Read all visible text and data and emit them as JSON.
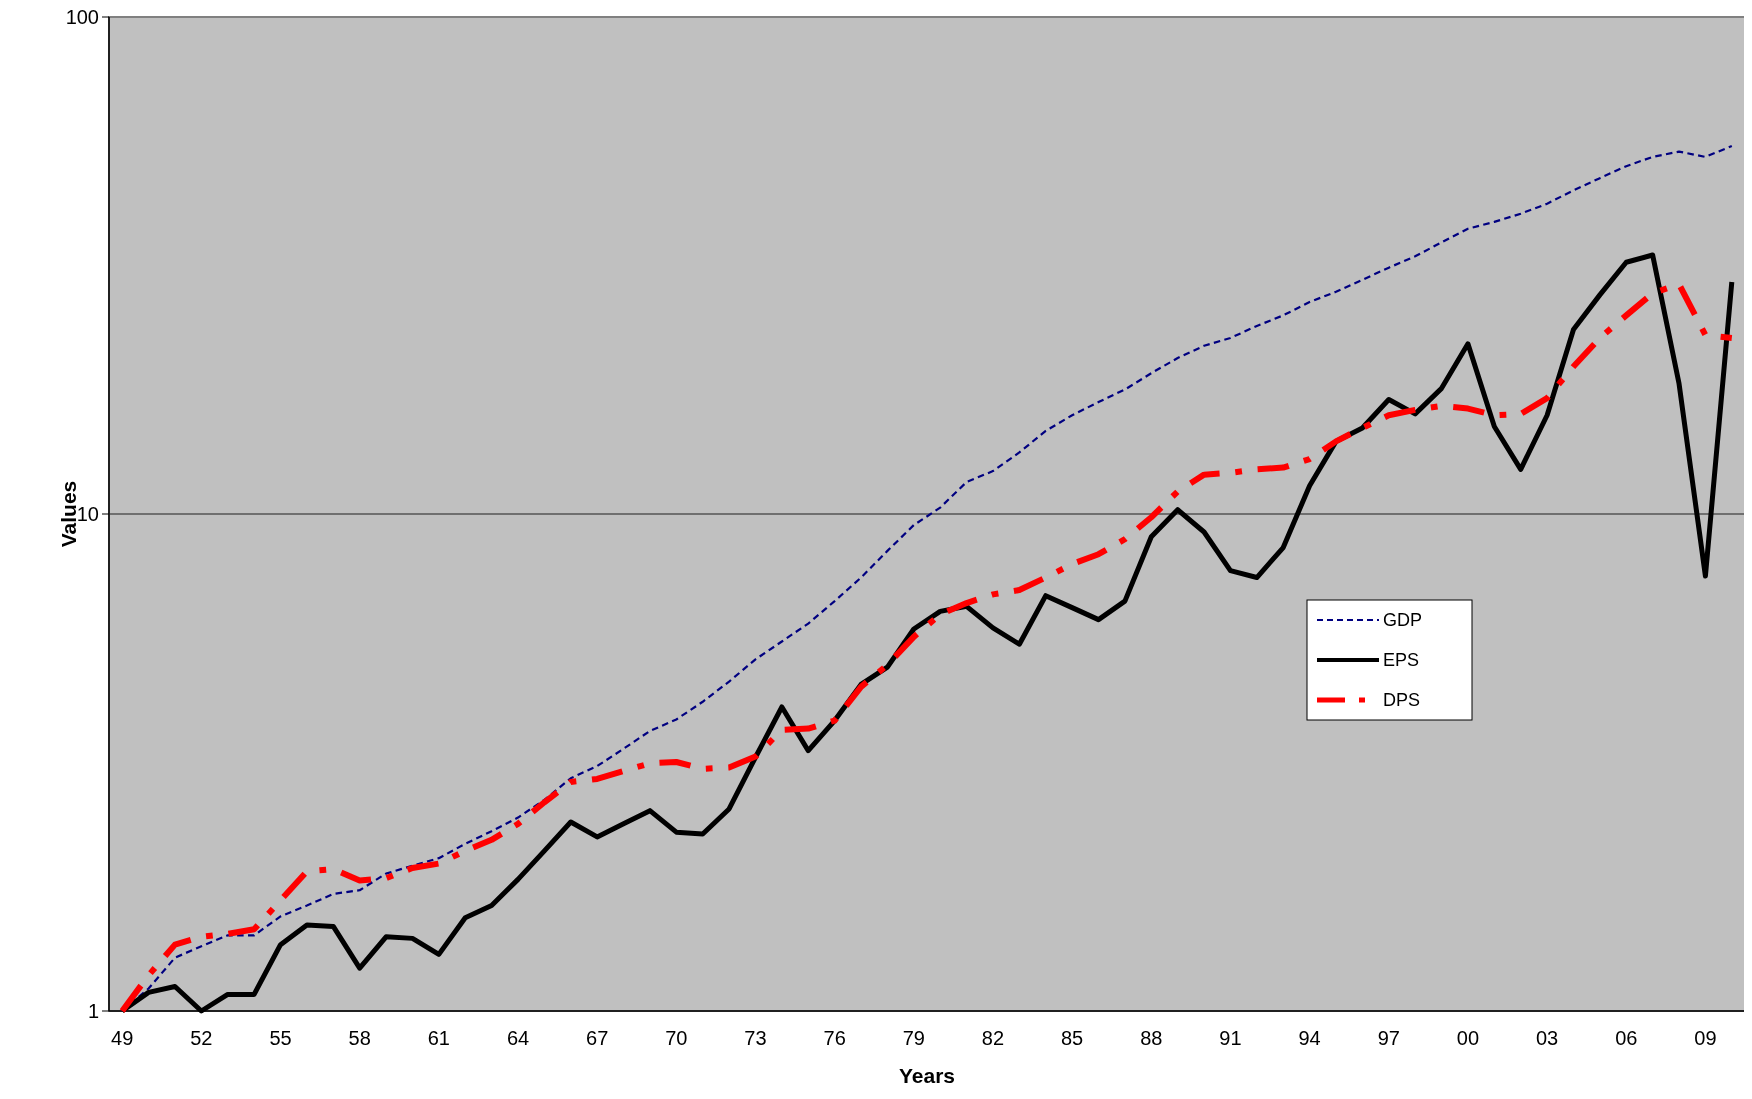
{
  "chart_data": {
    "type": "line",
    "xlabel": "Years",
    "ylabel": "Values",
    "categories": [
      "49",
      null,
      null,
      "52",
      null,
      null,
      "55",
      null,
      null,
      "58",
      null,
      null,
      "61",
      null,
      null,
      "64",
      null,
      null,
      "67",
      null,
      null,
      "70",
      null,
      null,
      "73",
      null,
      null,
      "76",
      null,
      null,
      "79",
      null,
      null,
      "82",
      null,
      null,
      "85",
      null,
      null,
      "88",
      null,
      null,
      "91",
      null,
      null,
      "94",
      null,
      null,
      "97",
      null,
      null,
      "00",
      null,
      null,
      "03",
      null,
      null,
      "06",
      null,
      null,
      "09",
      null
    ],
    "series": [
      {
        "name": "GDP",
        "color": "#000080",
        "line_style": "dashed",
        "values": [
          1,
          1.11,
          1.28,
          1.35,
          1.42,
          1.42,
          1.55,
          1.63,
          1.72,
          1.75,
          1.89,
          1.96,
          2.03,
          2.17,
          2.3,
          2.45,
          2.66,
          2.94,
          3.11,
          3.37,
          3.66,
          3.86,
          4.19,
          4.6,
          5.1,
          5.54,
          6.02,
          6.68,
          7.45,
          8.43,
          9.5,
          10.3,
          11.6,
          12.2,
          13.3,
          14.7,
          15.8,
          16.8,
          17.8,
          19.2,
          20.6,
          21.8,
          22.6,
          23.9,
          25.1,
          26.7,
          28,
          29.6,
          31.3,
          33,
          35.2,
          37.5,
          38.7,
          40.2,
          42.1,
          44.8,
          47.4,
          50.1,
          52.3,
          53.6,
          52.3,
          55
        ]
      },
      {
        "name": "EPS",
        "color": "#000000",
        "line_style": "solid",
        "values": [
          1,
          1.09,
          1.12,
          1,
          1.08,
          1.08,
          1.36,
          1.49,
          1.48,
          1.22,
          1.41,
          1.4,
          1.3,
          1.54,
          1.63,
          1.84,
          2.1,
          2.4,
          2.24,
          2.38,
          2.53,
          2.29,
          2.27,
          2.55,
          3.24,
          4.09,
          3.34,
          3.84,
          4.54,
          4.92,
          5.87,
          6.37,
          6.52,
          5.9,
          5.47,
          6.85,
          6.48,
          6.13,
          6.68,
          9,
          10.2,
          9.2,
          7.69,
          7.45,
          8.56,
          11.4,
          14,
          14.9,
          17,
          15.9,
          17.9,
          22,
          15,
          12.3,
          15.8,
          23.5,
          27.6,
          32.1,
          33.2,
          18.3,
          7.5,
          29.3
        ]
      },
      {
        "name": "DPS",
        "color": "#ff0000",
        "line_style": "dashed",
        "values": [
          1,
          1.18,
          1.36,
          1.41,
          1.43,
          1.46,
          1.67,
          1.91,
          1.93,
          1.83,
          1.85,
          1.94,
          1.98,
          2.1,
          2.21,
          2.38,
          2.63,
          2.89,
          2.93,
          3.04,
          3.15,
          3.17,
          3.07,
          3.09,
          3.25,
          3.68,
          3.7,
          3.84,
          4.49,
          4.97,
          5.66,
          6.28,
          6.62,
          6.89,
          7.03,
          7.45,
          7.93,
          8.3,
          8.9,
          9.85,
          11.1,
          12,
          12.1,
          12.3,
          12.4,
          12.9,
          14,
          14.9,
          15.8,
          16.2,
          16.5,
          16.3,
          15.8,
          15.9,
          17.1,
          19.8,
          22.6,
          25.1,
          27.8,
          29,
          22.9,
          22.6
        ]
      }
    ],
    "log": true,
    "ylim": [
      1,
      100
    ],
    "yticks": [
      1,
      10,
      100
    ],
    "grid": "y",
    "legend": "right"
  }
}
